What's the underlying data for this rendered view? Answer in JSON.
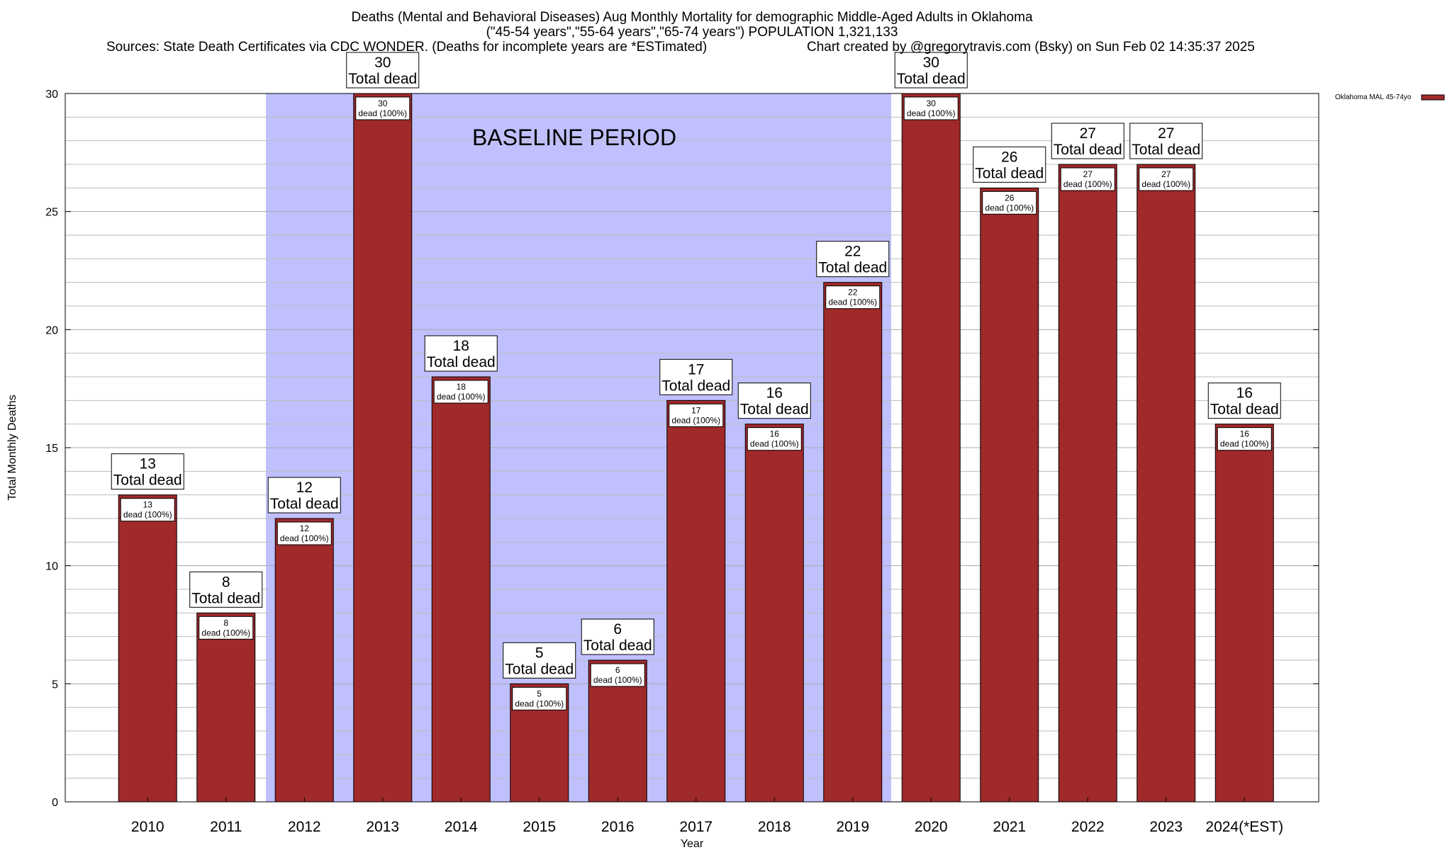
{
  "colors": {
    "bar": "#a0292a",
    "baseline_shade": "#c0c0ff",
    "grid": "#bdbdbd",
    "background": "#ffffff"
  },
  "chart_data": {
    "type": "bar",
    "title_lines": [
      "Deaths (Mental and Behavioral Diseases) Aug Monthly Mortality for demographic Middle-Aged Adults in Oklahoma",
      "(\"45-54 years\",\"55-64 years\",\"65-74 years\") POPULATION 1,321,133",
      "Sources: State Death Certificates via CDC WONDER. (Deaths for incomplete years are *ESTimated)",
      "Chart created by @gregorytravis.com (Bsky) on Sun Feb 02 14:35:37 2025"
    ],
    "xlabel": "Year",
    "ylabel": "Total Monthly Deaths",
    "ylim": [
      0,
      30
    ],
    "yticks": [
      0,
      5,
      10,
      15,
      20,
      25,
      30
    ],
    "y_minor_step": 1,
    "grid": true,
    "legend": {
      "position": "top-right",
      "entries": [
        "Oklahoma MAL 45-74yo"
      ]
    },
    "categories": [
      "2010",
      "2011",
      "2012",
      "2013",
      "2014",
      "2015",
      "2016",
      "2017",
      "2018",
      "2019",
      "2020",
      "2021",
      "2022",
      "2023",
      "2024(*EST)"
    ],
    "series": [
      {
        "name": "Oklahoma MAL 45-74yo",
        "values": [
          13,
          8,
          12,
          30,
          18,
          5,
          6,
          17,
          16,
          22,
          30,
          26,
          27,
          27,
          16
        ]
      }
    ],
    "top_label_text": "Total dead",
    "inner_label_text": "dead (100%)",
    "baseline_period": {
      "label": "BASELINE PERIOD",
      "from": "2012",
      "to": "2019"
    }
  }
}
